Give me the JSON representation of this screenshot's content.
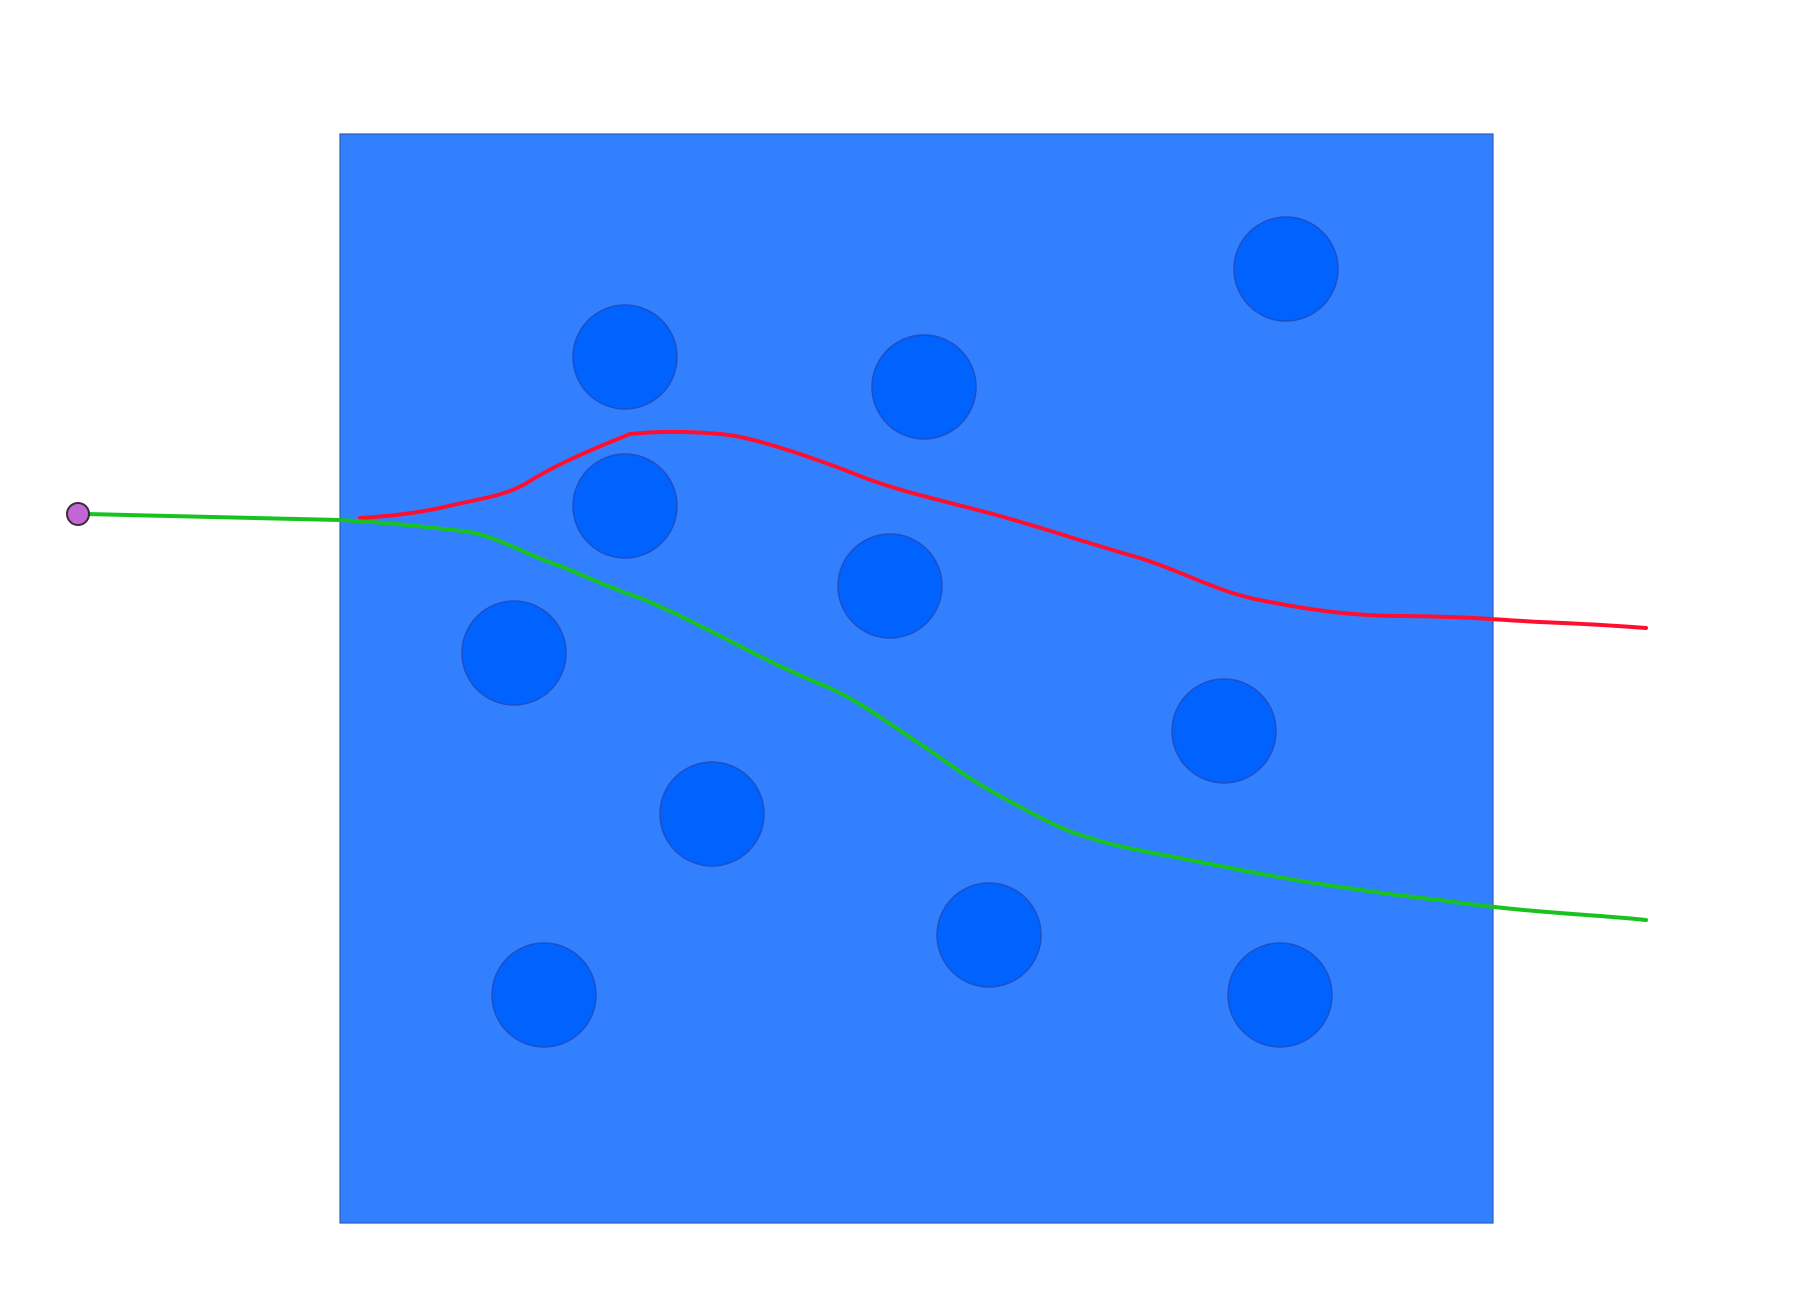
{
  "diagram": {
    "colors": {
      "background": "#ffffff",
      "medium_fill": "#3380ff",
      "medium_border": "#2a5fb8",
      "obstacle_fill": "#0062ff",
      "obstacle_border": "#1f4fc4",
      "source_fill": "#c266d6",
      "source_border": "#3a2a3a",
      "ray_upper": "#ff0f2f",
      "ray_lower": "#18c21f"
    },
    "obstacles": [
      {
        "id": "obstacle-1"
      },
      {
        "id": "obstacle-2"
      },
      {
        "id": "obstacle-3"
      },
      {
        "id": "obstacle-4"
      },
      {
        "id": "obstacle-5"
      },
      {
        "id": "obstacle-6"
      },
      {
        "id": "obstacle-7"
      },
      {
        "id": "obstacle-8"
      },
      {
        "id": "obstacle-9"
      },
      {
        "id": "obstacle-10"
      },
      {
        "id": "obstacle-11"
      },
      {
        "id": "obstacle-12"
      }
    ],
    "rays": [
      {
        "id": "ray-upper",
        "color_key": "ray_upper"
      },
      {
        "id": "ray-lower",
        "color_key": "ray_lower"
      }
    ],
    "source": {
      "id": "source-point"
    }
  }
}
